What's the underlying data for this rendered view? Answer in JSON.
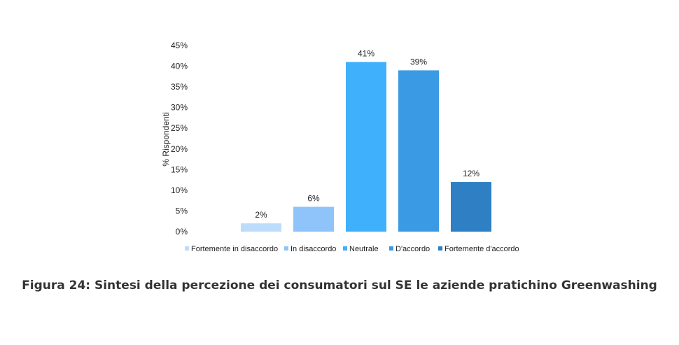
{
  "caption": "Figura 24: Sintesi della percezione dei consumatori sul SE le aziende pratichino Greenwashing",
  "chart_data": {
    "type": "bar",
    "title": "",
    "xlabel": "",
    "ylabel": "% Rispondenti",
    "ylim": [
      0,
      45
    ],
    "yticks": [
      "0%",
      "5%",
      "10%",
      "15%",
      "20%",
      "25%",
      "30%",
      "35%",
      "40%",
      "45%"
    ],
    "grid": false,
    "legend": "bottom",
    "categories": [
      "Fortemente in disaccordo",
      "In disaccordo",
      "Neutrale",
      "D'accordo",
      "Fortemente d'accordo"
    ],
    "values": [
      2,
      6,
      41,
      39,
      12
    ],
    "data_labels": [
      "2%",
      "6%",
      "41%",
      "39%",
      "12%"
    ],
    "colors": [
      "#bcdcfb",
      "#8ec4fa",
      "#3fb0fc",
      "#3a9be4",
      "#2e7fc3"
    ]
  }
}
